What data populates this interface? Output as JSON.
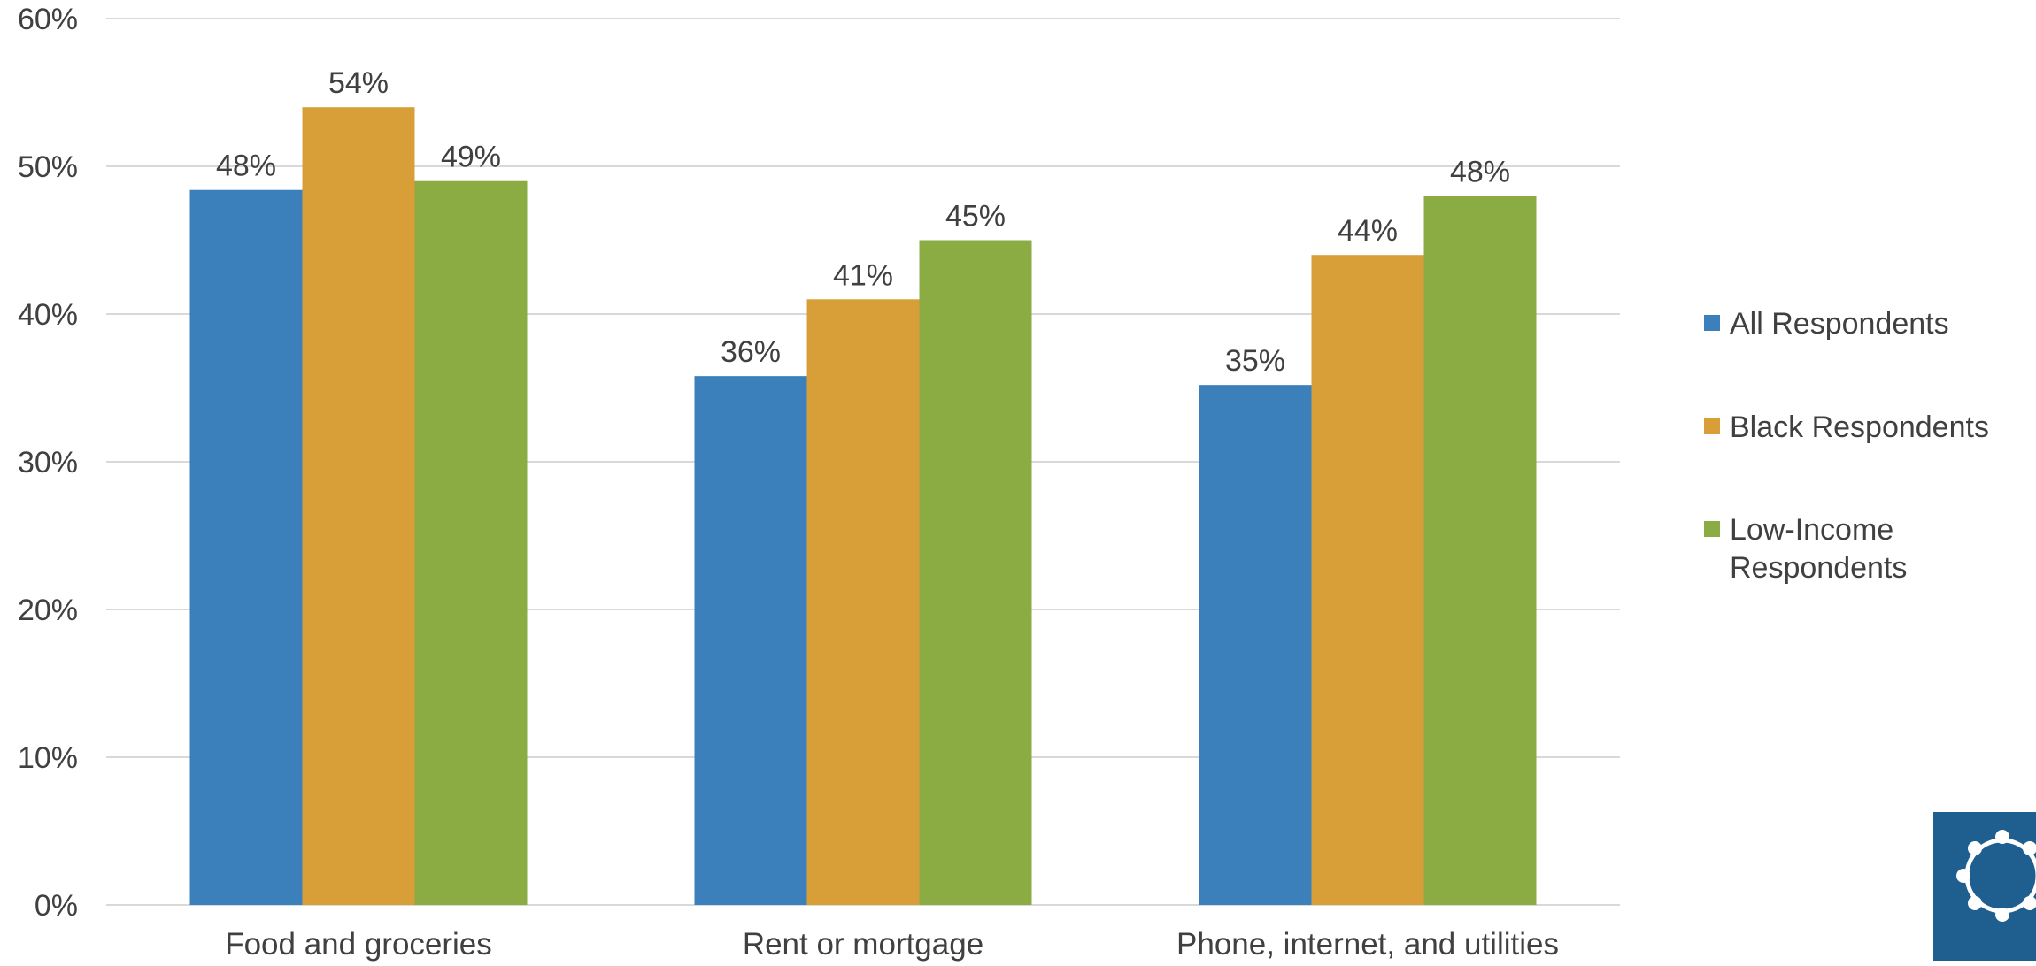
{
  "chart_data": {
    "type": "bar",
    "title": "",
    "xlabel": "",
    "ylabel": "",
    "ylim": [
      0,
      60
    ],
    "y_ticks": [
      "0%",
      "10%",
      "20%",
      "30%",
      "40%",
      "50%",
      "60%"
    ],
    "y_tick_values": [
      0,
      10,
      20,
      30,
      40,
      50,
      60
    ],
    "categories": [
      "Food and groceries",
      "Rent or mortgage",
      "Phone, internet, and utilities"
    ],
    "series": [
      {
        "name": "All Respondents",
        "color": "#3B80BA",
        "values": [
          48.4,
          35.8,
          35.2
        ],
        "labels": [
          "48%",
          "36%",
          "35%"
        ]
      },
      {
        "name": "Black Respondents",
        "color": "#D89F38",
        "values": [
          54,
          41,
          44
        ],
        "labels": [
          "54%",
          "41%",
          "44%"
        ]
      },
      {
        "name": "Low-Income Respondents",
        "color": "#8BAB43",
        "values": [
          49,
          45,
          48
        ],
        "labels": [
          "49%",
          "45%",
          "48%"
        ],
        "legend_lines": [
          "Low-Income",
          "Respondents"
        ]
      }
    ],
    "grid": true,
    "legend_position": "right"
  },
  "logo": {
    "name": "logo-icon",
    "background": "#1F5F8F"
  }
}
